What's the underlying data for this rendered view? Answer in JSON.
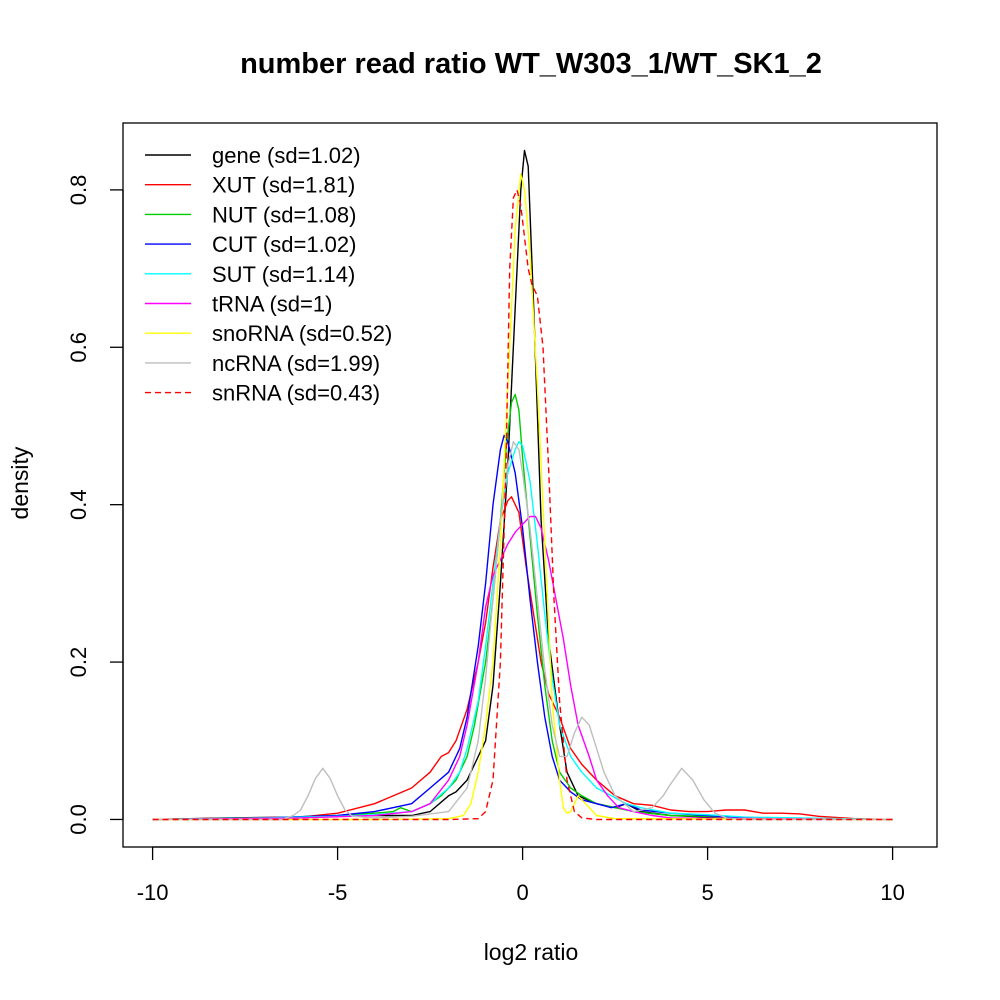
{
  "chart_data": {
    "type": "line",
    "title": "number read ratio WT_W303_1/WT_SK1_2",
    "xlabel": "log2 ratio",
    "ylabel": "density",
    "xlim": [
      -10.8,
      11.2
    ],
    "ylim": [
      -0.035,
      0.885
    ],
    "x_ticks": [
      -10,
      -5,
      0,
      5,
      10
    ],
    "y_ticks": [
      0.0,
      0.2,
      0.4,
      0.6,
      0.8
    ],
    "x_tick_labels": [
      "-10",
      "-5",
      "0",
      "5",
      "10"
    ],
    "y_tick_labels": [
      "0.0",
      "0.2",
      "0.4",
      "0.6",
      "0.8"
    ],
    "legend_position": "top-left",
    "grid": false,
    "series": [
      {
        "name": "gene (sd=1.02)",
        "color": "#000000",
        "dash": "solid",
        "points": [
          [
            -10,
            0
          ],
          [
            -8,
            0.002
          ],
          [
            -6,
            0.003
          ],
          [
            -4,
            0.005
          ],
          [
            -3,
            0.005
          ],
          [
            -2.5,
            0.01
          ],
          [
            -2,
            0.03
          ],
          [
            -1.8,
            0.035
          ],
          [
            -1.5,
            0.05
          ],
          [
            -1.2,
            0.08
          ],
          [
            -1,
            0.1
          ],
          [
            -0.8,
            0.17
          ],
          [
            -0.6,
            0.3
          ],
          [
            -0.4,
            0.45
          ],
          [
            -0.2,
            0.65
          ],
          [
            -0.05,
            0.8
          ],
          [
            0.05,
            0.85
          ],
          [
            0.15,
            0.83
          ],
          [
            0.3,
            0.65
          ],
          [
            0.5,
            0.38
          ],
          [
            0.7,
            0.23
          ],
          [
            1,
            0.12
          ],
          [
            1.2,
            0.06
          ],
          [
            1.5,
            0.03
          ],
          [
            2,
            0.02
          ],
          [
            2.5,
            0.015
          ],
          [
            2.8,
            0.02
          ],
          [
            3.2,
            0.01
          ],
          [
            4,
            0.005
          ],
          [
            5,
            0.003
          ],
          [
            6,
            0.001
          ],
          [
            10,
            0
          ]
        ]
      },
      {
        "name": "XUT (sd=1.81)",
        "color": "#ff0000",
        "dash": "solid",
        "points": [
          [
            -10,
            0
          ],
          [
            -6,
            0.003
          ],
          [
            -5,
            0.008
          ],
          [
            -4,
            0.02
          ],
          [
            -3,
            0.04
          ],
          [
            -2.5,
            0.06
          ],
          [
            -2.2,
            0.08
          ],
          [
            -2,
            0.085
          ],
          [
            -1.8,
            0.1
          ],
          [
            -1.5,
            0.14
          ],
          [
            -1.2,
            0.2
          ],
          [
            -1,
            0.25
          ],
          [
            -0.8,
            0.32
          ],
          [
            -0.6,
            0.38
          ],
          [
            -0.4,
            0.405
          ],
          [
            -0.3,
            0.41
          ],
          [
            -0.1,
            0.39
          ],
          [
            0.1,
            0.32
          ],
          [
            0.3,
            0.26
          ],
          [
            0.5,
            0.2
          ],
          [
            0.7,
            0.16
          ],
          [
            1,
            0.13
          ],
          [
            1.3,
            0.09
          ],
          [
            1.6,
            0.07
          ],
          [
            2,
            0.05
          ],
          [
            2.5,
            0.03
          ],
          [
            3,
            0.02
          ],
          [
            3.5,
            0.018
          ],
          [
            4,
            0.012
          ],
          [
            4.5,
            0.01
          ],
          [
            5,
            0.01
          ],
          [
            5.5,
            0.012
          ],
          [
            6,
            0.012
          ],
          [
            6.5,
            0.008
          ],
          [
            7,
            0.008
          ],
          [
            7.5,
            0.007
          ],
          [
            8,
            0.004
          ],
          [
            9,
            0.001
          ],
          [
            10,
            0
          ]
        ]
      },
      {
        "name": "NUT (sd=1.08)",
        "color": "#00cd00",
        "dash": "solid",
        "points": [
          [
            -10,
            0
          ],
          [
            -7,
            0.002
          ],
          [
            -5,
            0.005
          ],
          [
            -4,
            0.008
          ],
          [
            -3.5,
            0.01
          ],
          [
            -3.3,
            0.015
          ],
          [
            -3,
            0.01
          ],
          [
            -2.5,
            0.02
          ],
          [
            -2.2,
            0.03
          ],
          [
            -2,
            0.04
          ],
          [
            -1.8,
            0.05
          ],
          [
            -1.5,
            0.08
          ],
          [
            -1.3,
            0.12
          ],
          [
            -1,
            0.2
          ],
          [
            -0.8,
            0.28
          ],
          [
            -0.6,
            0.38
          ],
          [
            -0.45,
            0.47
          ],
          [
            -0.3,
            0.53
          ],
          [
            -0.2,
            0.54
          ],
          [
            -0.1,
            0.52
          ],
          [
            0,
            0.46
          ],
          [
            0.2,
            0.36
          ],
          [
            0.4,
            0.26
          ],
          [
            0.6,
            0.17
          ],
          [
            0.8,
            0.1
          ],
          [
            1,
            0.06
          ],
          [
            1.3,
            0.04
          ],
          [
            1.6,
            0.03
          ],
          [
            2,
            0.02
          ],
          [
            2.5,
            0.015
          ],
          [
            3,
            0.01
          ],
          [
            4,
            0.005
          ],
          [
            5,
            0.004
          ],
          [
            6,
            0.002
          ],
          [
            10,
            0
          ]
        ]
      },
      {
        "name": "CUT (sd=1.02)",
        "color": "#0000ff",
        "dash": "solid",
        "points": [
          [
            -10,
            0
          ],
          [
            -7,
            0.002
          ],
          [
            -5,
            0.005
          ],
          [
            -4,
            0.01
          ],
          [
            -3,
            0.02
          ],
          [
            -2.5,
            0.04
          ],
          [
            -2,
            0.06
          ],
          [
            -1.7,
            0.09
          ],
          [
            -1.5,
            0.13
          ],
          [
            -1.2,
            0.22
          ],
          [
            -1,
            0.3
          ],
          [
            -0.8,
            0.4
          ],
          [
            -0.6,
            0.47
          ],
          [
            -0.5,
            0.488
          ],
          [
            -0.4,
            0.48
          ],
          [
            -0.2,
            0.44
          ],
          [
            0,
            0.37
          ],
          [
            0.2,
            0.28
          ],
          [
            0.4,
            0.2
          ],
          [
            0.6,
            0.13
          ],
          [
            0.8,
            0.08
          ],
          [
            1,
            0.05
          ],
          [
            1.3,
            0.035
          ],
          [
            1.6,
            0.025
          ],
          [
            2,
            0.02
          ],
          [
            2.4,
            0.015
          ],
          [
            2.8,
            0.02
          ],
          [
            3.2,
            0.012
          ],
          [
            4,
            0.008
          ],
          [
            5,
            0.005
          ],
          [
            6,
            0.002
          ],
          [
            10,
            0
          ]
        ]
      },
      {
        "name": "SUT (sd=1.14)",
        "color": "#00ffff",
        "dash": "solid",
        "points": [
          [
            -10,
            0
          ],
          [
            -7,
            0.002
          ],
          [
            -5,
            0.004
          ],
          [
            -4,
            0.006
          ],
          [
            -3,
            0.01
          ],
          [
            -2.5,
            0.02
          ],
          [
            -2,
            0.04
          ],
          [
            -1.7,
            0.06
          ],
          [
            -1.5,
            0.09
          ],
          [
            -1.2,
            0.15
          ],
          [
            -1,
            0.22
          ],
          [
            -0.8,
            0.3
          ],
          [
            -0.6,
            0.38
          ],
          [
            -0.4,
            0.44
          ],
          [
            -0.2,
            0.47
          ],
          [
            -0.1,
            0.48
          ],
          [
            0,
            0.475
          ],
          [
            0.2,
            0.43
          ],
          [
            0.4,
            0.35
          ],
          [
            0.6,
            0.26
          ],
          [
            0.8,
            0.18
          ],
          [
            1,
            0.12
          ],
          [
            1.3,
            0.08
          ],
          [
            1.6,
            0.06
          ],
          [
            2,
            0.04
          ],
          [
            2.4,
            0.03
          ],
          [
            2.8,
            0.02
          ],
          [
            3.2,
            0.015
          ],
          [
            4,
            0.008
          ],
          [
            5,
            0.006
          ],
          [
            6,
            0.003
          ],
          [
            10,
            0
          ]
        ]
      },
      {
        "name": "tRNA (sd=1)",
        "color": "#ff00ff",
        "dash": "solid",
        "points": [
          [
            -10,
            0
          ],
          [
            -6,
            0.002
          ],
          [
            -4,
            0.005
          ],
          [
            -3,
            0.01
          ],
          [
            -2.5,
            0.02
          ],
          [
            -2,
            0.05
          ],
          [
            -1.7,
            0.08
          ],
          [
            -1.5,
            0.12
          ],
          [
            -1.2,
            0.2
          ],
          [
            -1,
            0.27
          ],
          [
            -0.8,
            0.31
          ],
          [
            -0.6,
            0.33
          ],
          [
            -0.4,
            0.35
          ],
          [
            -0.2,
            0.365
          ],
          [
            0,
            0.375
          ],
          [
            0.2,
            0.385
          ],
          [
            0.35,
            0.385
          ],
          [
            0.5,
            0.37
          ],
          [
            0.7,
            0.33
          ],
          [
            0.9,
            0.28
          ],
          [
            1.1,
            0.23
          ],
          [
            1.3,
            0.17
          ],
          [
            1.5,
            0.12
          ],
          [
            1.8,
            0.08
          ],
          [
            2,
            0.05
          ],
          [
            2.3,
            0.03
          ],
          [
            2.6,
            0.015
          ],
          [
            3,
            0.01
          ],
          [
            3.5,
            0.005
          ],
          [
            4,
            0.002
          ],
          [
            10,
            0
          ]
        ]
      },
      {
        "name": "snoRNA (sd=0.52)",
        "color": "#ffff00",
        "dash": "solid",
        "points": [
          [
            -10,
            0
          ],
          [
            -4,
            0
          ],
          [
            -2,
            0.001
          ],
          [
            -1.6,
            0.005
          ],
          [
            -1.4,
            0.02
          ],
          [
            -1.2,
            0.06
          ],
          [
            -1,
            0.12
          ],
          [
            -0.8,
            0.2
          ],
          [
            -0.6,
            0.35
          ],
          [
            -0.4,
            0.55
          ],
          [
            -0.2,
            0.75
          ],
          [
            -0.05,
            0.82
          ],
          [
            0.05,
            0.8
          ],
          [
            0.2,
            0.72
          ],
          [
            0.4,
            0.55
          ],
          [
            0.6,
            0.35
          ],
          [
            0.8,
            0.15
          ],
          [
            1,
            0.05
          ],
          [
            1.1,
            0.015
          ],
          [
            1.2,
            0.008
          ],
          [
            1.3,
            0.01
          ],
          [
            1.5,
            0.03
          ],
          [
            1.7,
            0.02
          ],
          [
            2,
            0.005
          ],
          [
            2.5,
            0.001
          ],
          [
            10,
            0
          ]
        ]
      },
      {
        "name": "ncRNA (sd=1.99)",
        "color": "#bebebe",
        "dash": "solid",
        "points": [
          [
            -10,
            0
          ],
          [
            -6.5,
            0
          ],
          [
            -6.2,
            0.005
          ],
          [
            -6,
            0.012
          ],
          [
            -5.8,
            0.03
          ],
          [
            -5.6,
            0.052
          ],
          [
            -5.4,
            0.065
          ],
          [
            -5.2,
            0.052
          ],
          [
            -5,
            0.03
          ],
          [
            -4.8,
            0.012
          ],
          [
            -4.6,
            0.004
          ],
          [
            -4,
            0.002
          ],
          [
            -3,
            0.004
          ],
          [
            -2,
            0.01
          ],
          [
            -1.5,
            0.04
          ],
          [
            -1.2,
            0.1
          ],
          [
            -1,
            0.18
          ],
          [
            -0.8,
            0.28
          ],
          [
            -0.6,
            0.38
          ],
          [
            -0.4,
            0.45
          ],
          [
            -0.25,
            0.48
          ],
          [
            -0.1,
            0.47
          ],
          [
            0,
            0.44
          ],
          [
            0.2,
            0.37
          ],
          [
            0.4,
            0.28
          ],
          [
            0.6,
            0.19
          ],
          [
            0.8,
            0.12
          ],
          [
            1,
            0.08
          ],
          [
            1.2,
            0.08
          ],
          [
            1.4,
            0.11
          ],
          [
            1.6,
            0.13
          ],
          [
            1.8,
            0.12
          ],
          [
            2,
            0.09
          ],
          [
            2.2,
            0.06
          ],
          [
            2.5,
            0.03
          ],
          [
            3,
            0.01
          ],
          [
            3.5,
            0.015
          ],
          [
            3.8,
            0.03
          ],
          [
            4,
            0.045
          ],
          [
            4.3,
            0.065
          ],
          [
            4.6,
            0.05
          ],
          [
            4.9,
            0.025
          ],
          [
            5.2,
            0.008
          ],
          [
            5.5,
            0.002
          ],
          [
            6,
            0
          ],
          [
            10,
            0
          ]
        ]
      },
      {
        "name": "snRNA (sd=0.43)",
        "color": "#ff0000",
        "dash": "dashed",
        "points": [
          [
            -10,
            0
          ],
          [
            -2,
            0
          ],
          [
            -1.2,
            0.001
          ],
          [
            -1,
            0.01
          ],
          [
            -0.8,
            0.05
          ],
          [
            -0.6,
            0.2
          ],
          [
            -0.45,
            0.45
          ],
          [
            -0.35,
            0.7
          ],
          [
            -0.25,
            0.79
          ],
          [
            -0.15,
            0.8
          ],
          [
            -0.05,
            0.78
          ],
          [
            0.05,
            0.74
          ],
          [
            0.15,
            0.7
          ],
          [
            0.25,
            0.68
          ],
          [
            0.4,
            0.665
          ],
          [
            0.55,
            0.6
          ],
          [
            0.7,
            0.45
          ],
          [
            0.85,
            0.28
          ],
          [
            1,
            0.15
          ],
          [
            1.2,
            0.05
          ],
          [
            1.4,
            0.01
          ],
          [
            1.6,
            0.002
          ],
          [
            2,
            0
          ],
          [
            10,
            0
          ]
        ]
      }
    ]
  }
}
